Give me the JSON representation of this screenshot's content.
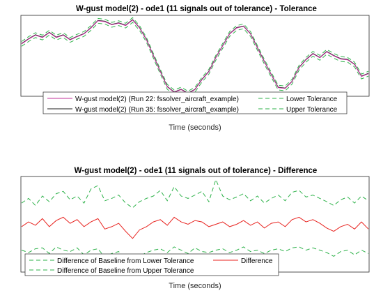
{
  "chart_data": [
    {
      "type": "line",
      "title": "W-gust model(2) - ode1 (11 signals out of tolerance) - Tolerance",
      "xlabel": "Time (seconds)",
      "ylabel": "",
      "x_ticks_visible": false,
      "y_ticks_visible": false,
      "ylim": [
        -1,
        1
      ],
      "legend_location": "bottom",
      "series": [
        {
          "name": "W-gust model(2) (Run 22: fssolver_aircraft_example)",
          "color": "#c0309a",
          "style": "solid"
        },
        {
          "name": "W-gust model(2) (Run 35: fssolver_aircraft_example)",
          "color": "#1f1f1f",
          "style": "solid"
        },
        {
          "name": "Lower Tolerance",
          "color": "#2eb24a",
          "style": "dashed"
        },
        {
          "name": "Upper Tolerance",
          "color": "#2eb24a",
          "style": "dashed"
        }
      ],
      "signal_y": [
        0.3,
        0.42,
        0.52,
        0.46,
        0.58,
        0.46,
        0.52,
        0.4,
        0.48,
        0.55,
        0.7,
        0.88,
        0.86,
        0.78,
        0.82,
        0.76,
        0.9,
        0.7,
        0.4,
        0.0,
        -0.4,
        -0.78,
        -0.92,
        -0.85,
        -0.95,
        -0.85,
        -0.6,
        -0.4,
        -0.05,
        0.25,
        0.55,
        0.7,
        0.74,
        0.55,
        0.2,
        -0.15,
        -0.48,
        -0.8,
        -0.82,
        -0.65,
        -0.3,
        -0.1,
        0.05,
        -0.05,
        0.1,
        0.0,
        -0.08,
        -0.1,
        -0.22,
        -0.52,
        -0.45
      ]
    },
    {
      "type": "line",
      "title": "W-gust model(2) - ode1 (11 signals out of tolerance) - Difference",
      "xlabel": "Time (seconds)",
      "ylabel": "",
      "x_ticks_visible": false,
      "y_ticks_visible": false,
      "ylim": [
        -1,
        1
      ],
      "legend_location": "bottom",
      "series": [
        {
          "name": "Difference of Baseline from Lower Tolerance",
          "color": "#2eb24a",
          "style": "dashed"
        },
        {
          "name": "Difference",
          "color": "#e8231f",
          "style": "solid"
        },
        {
          "name": "Difference of Baseline from Upper Tolerance",
          "color": "#2eb24a",
          "style": "dashed"
        }
      ],
      "difference_y": [
        -0.05,
        0.05,
        -0.02,
        0.12,
        -0.05,
        0.08,
        0.15,
        0.02,
        0.1,
        -0.05,
        0.05,
        0.12,
        -0.1,
        -0.05,
        0.02,
        -0.15,
        -0.3,
        -0.12,
        -0.05,
        0.05,
        0.1,
        -0.02,
        0.15,
        0.05,
        0.0,
        0.08,
        0.05,
        -0.05,
        0.0,
        0.05,
        -0.05,
        0.0,
        0.08,
        -0.02,
        0.05,
        -0.08,
        0.02,
        0.05,
        -0.05,
        0.1,
        0.15,
        0.05,
        0.1,
        0.02,
        -0.08,
        -0.15,
        -0.05,
        0.0,
        -0.1,
        0.05,
        -0.1
      ],
      "lower_band_y": [
        -0.55,
        -0.6,
        -0.52,
        -0.5,
        -0.62,
        -0.48,
        -0.55,
        -0.58,
        -0.5,
        -0.65,
        -0.55,
        -0.52,
        -0.7,
        -0.62,
        -0.58,
        -0.72,
        -0.85,
        -0.68,
        -0.6,
        -0.55,
        -0.52,
        -0.6,
        -0.48,
        -0.55,
        -0.62,
        -0.5,
        -0.58,
        -0.6,
        -0.55,
        -0.52,
        -0.6,
        -0.55,
        -0.48,
        -0.58,
        -0.55,
        -0.62,
        -0.55,
        -0.52,
        -0.58,
        -0.5,
        -0.48,
        -0.55,
        -0.5,
        -0.55,
        -0.6,
        -0.68,
        -0.58,
        -0.55,
        -0.65,
        -0.55,
        -0.62
      ],
      "upper_band_y": [
        0.45,
        0.55,
        0.4,
        0.6,
        0.48,
        0.65,
        0.7,
        0.52,
        0.6,
        0.45,
        0.75,
        0.82,
        0.5,
        0.55,
        0.62,
        0.45,
        0.35,
        0.48,
        0.55,
        0.6,
        0.72,
        0.5,
        0.8,
        0.6,
        0.55,
        0.62,
        0.7,
        0.48,
        0.95,
        0.6,
        0.52,
        0.58,
        0.65,
        0.5,
        0.6,
        0.45,
        0.55,
        0.62,
        0.5,
        0.68,
        0.72,
        0.58,
        0.62,
        0.55,
        0.48,
        0.4,
        0.52,
        0.58,
        0.45,
        0.6,
        0.5
      ]
    }
  ]
}
